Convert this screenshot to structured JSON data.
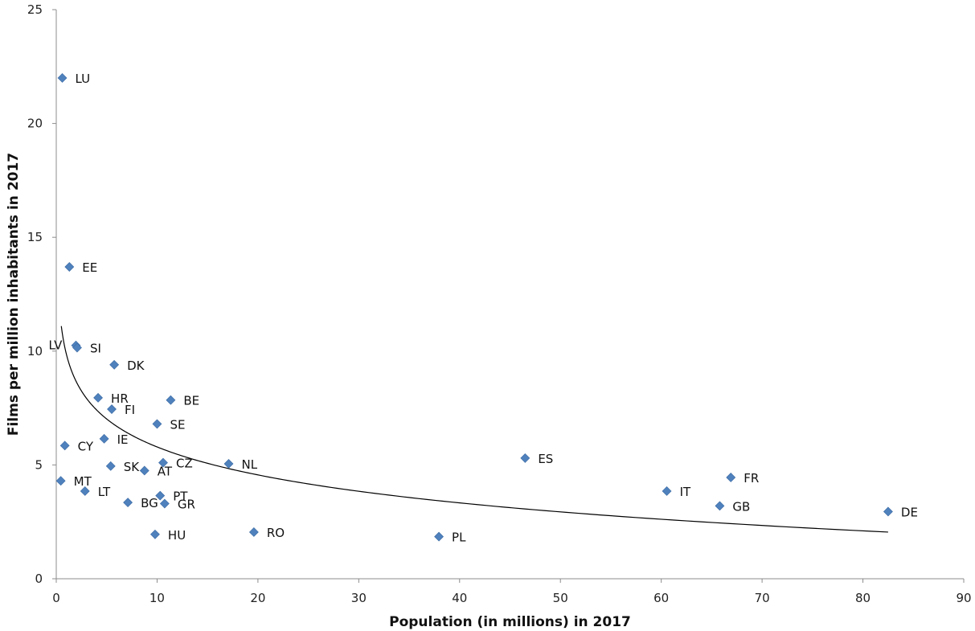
{
  "chart_data": {
    "type": "scatter",
    "title": "",
    "xlabel": "Population (in millions) in 2017",
    "ylabel": "Films per million inhabitants in 2017",
    "xlim": [
      0,
      90
    ],
    "ylim": [
      0,
      25
    ],
    "xticks": [
      0,
      10,
      20,
      30,
      40,
      50,
      60,
      70,
      80,
      90
    ],
    "yticks": [
      0,
      5,
      10,
      15,
      20,
      25
    ],
    "grid": false,
    "legend": "none",
    "marker_color": "#4f81bd",
    "trendline": {
      "type": "logarithmic",
      "x_from": 0.5,
      "x_to": 82.5,
      "y_start": 11.1,
      "y_end": 2.05
    },
    "points": [
      {
        "label": "LU",
        "x": 0.6,
        "y": 22.0
      },
      {
        "label": "EE",
        "x": 1.3,
        "y": 13.7
      },
      {
        "label": "LV",
        "x": 1.95,
        "y": 10.25
      },
      {
        "label": "SI",
        "x": 2.07,
        "y": 10.15
      },
      {
        "label": "DK",
        "x": 5.75,
        "y": 9.4
      },
      {
        "label": "HR",
        "x": 4.15,
        "y": 7.95
      },
      {
        "label": "BE",
        "x": 11.35,
        "y": 7.85
      },
      {
        "label": "FI",
        "x": 5.5,
        "y": 7.45
      },
      {
        "label": "SE",
        "x": 10.0,
        "y": 6.8
      },
      {
        "label": "IE",
        "x": 4.75,
        "y": 6.15
      },
      {
        "label": "CY",
        "x": 0.85,
        "y": 5.85
      },
      {
        "label": "SK",
        "x": 5.4,
        "y": 4.95
      },
      {
        "label": "CZ",
        "x": 10.6,
        "y": 5.1
      },
      {
        "label": "AT",
        "x": 8.75,
        "y": 4.75
      },
      {
        "label": "NL",
        "x": 17.1,
        "y": 5.05
      },
      {
        "label": "ES",
        "x": 46.5,
        "y": 5.3
      },
      {
        "label": "MT",
        "x": 0.45,
        "y": 4.3
      },
      {
        "label": "LT",
        "x": 2.85,
        "y": 3.85
      },
      {
        "label": "PT",
        "x": 10.3,
        "y": 3.65
      },
      {
        "label": "BG",
        "x": 7.1,
        "y": 3.35
      },
      {
        "label": "GR",
        "x": 10.75,
        "y": 3.3
      },
      {
        "label": "HU",
        "x": 9.8,
        "y": 1.95
      },
      {
        "label": "RO",
        "x": 19.6,
        "y": 2.05
      },
      {
        "label": "PL",
        "x": 37.95,
        "y": 1.85
      },
      {
        "label": "IT",
        "x": 60.55,
        "y": 3.85
      },
      {
        "label": "FR",
        "x": 66.9,
        "y": 4.45
      },
      {
        "label": "GB",
        "x": 65.8,
        "y": 3.2
      },
      {
        "label": "DE",
        "x": 82.5,
        "y": 2.95
      }
    ]
  }
}
